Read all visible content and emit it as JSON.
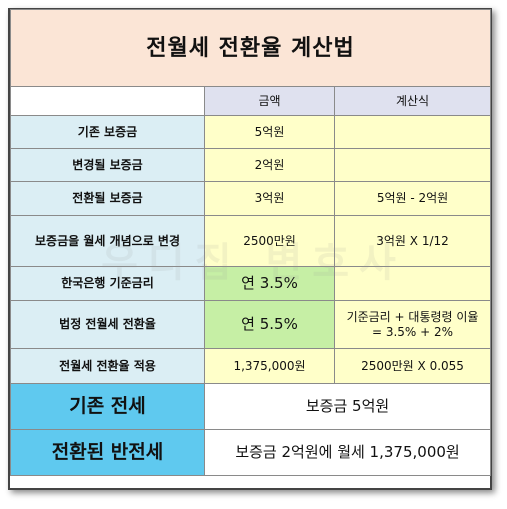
{
  "title": "전월세 전환율 계산법",
  "watermark": "우디집 변호사",
  "headers": {
    "amount": "금액",
    "formula": "계산식"
  },
  "rows": [
    {
      "label": "기존 보증금",
      "amount": "5억원",
      "formula": ""
    },
    {
      "label": "변경될 보증금",
      "amount": "2억원",
      "formula": ""
    },
    {
      "label": "전환될 보증금",
      "amount": "3억원",
      "formula": "5억원 - 2억원"
    },
    {
      "label": "보증금을 월세 개념으로 변경",
      "amount": "2500만원",
      "formula": "3억원 X 1/12"
    },
    {
      "label": "한국은행 기준금리",
      "amount": "연 3.5%",
      "formula": ""
    },
    {
      "label": "법정 전월세 전환율",
      "amount": "연 5.5%",
      "formula_line1": "기준금리 + 대통령령 이율",
      "formula_line2": "= 3.5% + 2%"
    },
    {
      "label": "전월세 전환율 적용",
      "amount": "1,375,000원",
      "formula": "2500만원 X 0.055"
    }
  ],
  "summary": [
    {
      "label": "기존 전세",
      "value": "보증금 5억원"
    },
    {
      "label": "전환된 반전세",
      "value": "보증금 2억원에 월세 1,375,000원"
    }
  ]
}
